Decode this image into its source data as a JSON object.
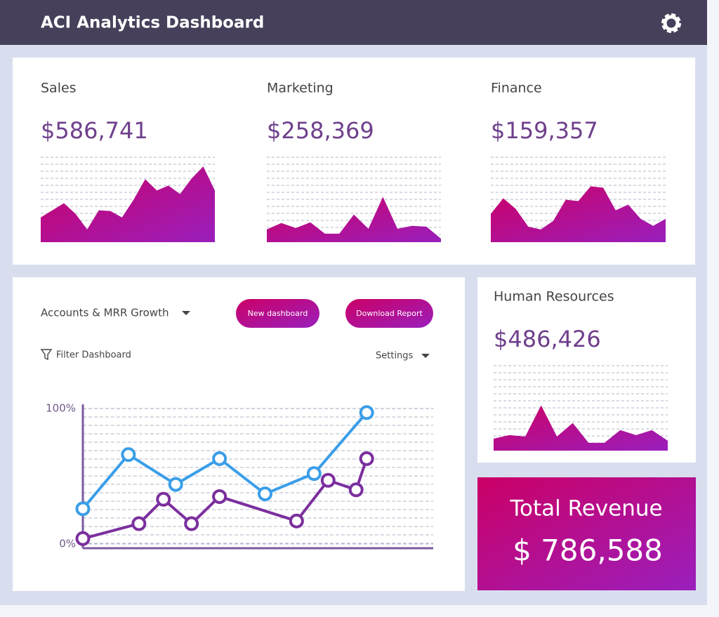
{
  "header": {
    "title": "ACI Analytics Dashboard"
  },
  "cards": [
    {
      "label": "Sales",
      "amount": "$586,741",
      "ylim": [
        0,
        120
      ],
      "values": [
        35,
        45,
        55,
        40,
        18,
        45,
        44,
        35,
        60,
        89,
        73,
        80,
        68,
        90,
        107,
        73
      ]
    },
    {
      "label": "Marketing",
      "amount": "$258,369",
      "ylim": [
        0,
        120
      ],
      "values": [
        18,
        27,
        20,
        28,
        12,
        12,
        39,
        19,
        64,
        19,
        23,
        22,
        5
      ]
    },
    {
      "label": "Finance",
      "amount": "$159,357",
      "ylim": [
        0,
        120
      ],
      "values": [
        40,
        62,
        47,
        22,
        18,
        30,
        60,
        58,
        79,
        77,
        45,
        53,
        33,
        23,
        33
      ]
    },
    {
      "label": "Human Resources",
      "amount": "$486,426",
      "ylim": [
        0,
        120
      ],
      "values": [
        17,
        22,
        20,
        64,
        20,
        39,
        11,
        11,
        29,
        22,
        29,
        14
      ]
    }
  ],
  "growth": {
    "title": "Accounts & MRR Growth",
    "buttons": [
      "New dashboard",
      "Download Report"
    ],
    "filter": "Filter Dashboard",
    "settings": "Settings"
  },
  "chart_data": {
    "type": "line",
    "xlim": [
      0,
      100
    ],
    "ylim": [
      0,
      100
    ],
    "yticks": [
      {
        "value": 0,
        "label": "0%"
      },
      {
        "value": 100,
        "label": "100%"
      }
    ],
    "series": [
      {
        "color": "#3b9ee8",
        "x": [
          0,
          13,
          26.5,
          39,
          52,
          66,
          81
        ],
        "values": [
          26,
          66,
          44,
          63,
          37,
          52,
          97
        ]
      },
      {
        "color": "#7b2f9e",
        "x": [
          0,
          16,
          23,
          31,
          39,
          61,
          70,
          78,
          81
        ],
        "values": [
          4,
          15,
          33,
          15,
          35,
          17,
          47,
          40,
          63
        ]
      }
    ]
  },
  "total": {
    "label": "Total Revenue",
    "amount": "$ 786,588"
  }
}
